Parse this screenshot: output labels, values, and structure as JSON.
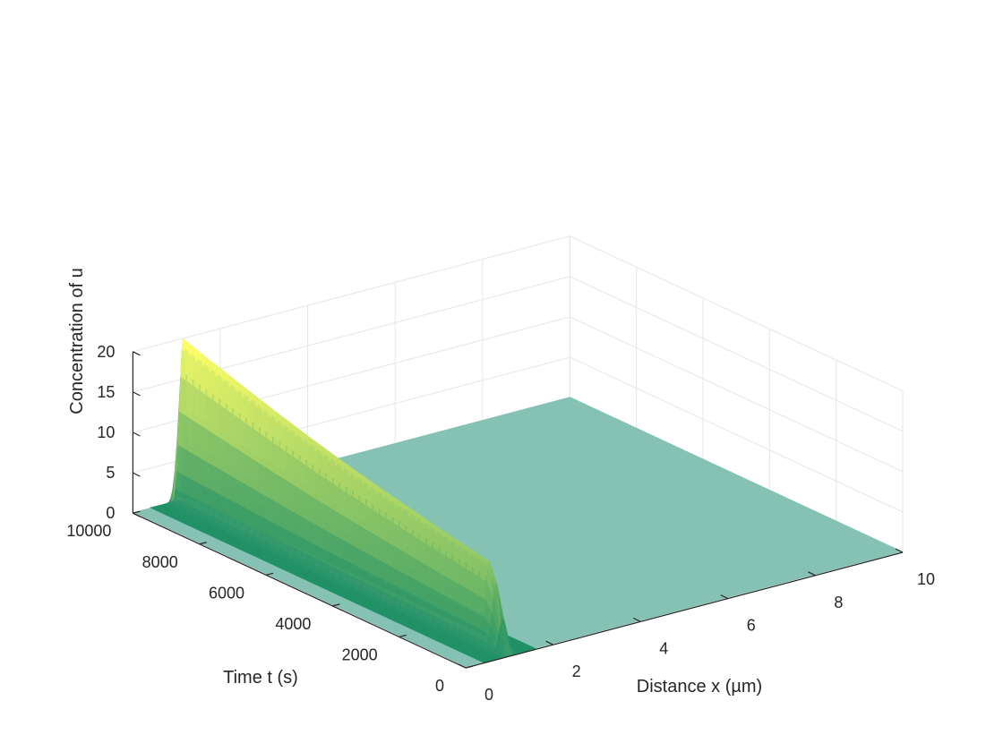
{
  "chart_data": {
    "type": "surface",
    "title": "",
    "xlabel": "Distance x (µm)",
    "ylabel": "Time t (s)",
    "zlabel": "Concentration of u",
    "xlim": [
      0,
      10
    ],
    "ylim": [
      0,
      10000
    ],
    "zlim": [
      0,
      20
    ],
    "xticks": [
      "0",
      "2",
      "4",
      "6",
      "8",
      "10"
    ],
    "yticks": [
      "0",
      "2000",
      "4000",
      "6000",
      "8000",
      "10000"
    ],
    "zticks": [
      "0",
      "5",
      "10",
      "15",
      "20"
    ],
    "grid": true,
    "colormap": "summer",
    "surface": {
      "description": "Narrow ridge centred near x = 1 (µm); concentration ~0 elsewhere",
      "peak_x": 1.0,
      "peak_width": 0.12,
      "peak_values": [
        {
          "t": 0,
          "u": 0.1
        },
        {
          "t": 500,
          "u": 10.5
        },
        {
          "t": 1000,
          "u": 10.9
        },
        {
          "t": 2000,
          "u": 11.7
        },
        {
          "t": 3000,
          "u": 12.6
        },
        {
          "t": 4000,
          "u": 13.5
        },
        {
          "t": 5000,
          "u": 14.5
        },
        {
          "t": 6000,
          "u": 15.6
        },
        {
          "t": 7000,
          "u": 16.8
        },
        {
          "t": 8000,
          "u": 18.1
        },
        {
          "t": 9000,
          "u": 19.4
        },
        {
          "t": 9800,
          "u": 20.5
        },
        {
          "t": 10000,
          "u": 0.5
        }
      ],
      "baseline_u": 0.1,
      "color_low": "#1f8f66",
      "color_high": "#ffff66",
      "floor_color": "#7fbfb0"
    }
  }
}
